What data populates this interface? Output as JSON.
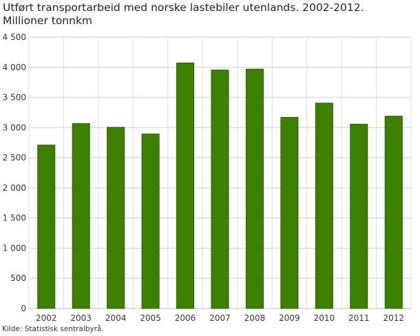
{
  "chart_data": {
    "type": "bar",
    "title": "Utført transportarbeid med norske lastebiler utenlands. 2002-2012.",
    "subtitle": "Millioner tonnkm",
    "source": "Kilde: Statistisk sentralbyrå.",
    "categories": [
      "2002",
      "2003",
      "2004",
      "2005",
      "2006",
      "2007",
      "2008",
      "2009",
      "2010",
      "2011",
      "2012"
    ],
    "values": [
      2710,
      3068,
      3005,
      2894,
      4073,
      3955,
      3970,
      3170,
      3406,
      3057,
      3190
    ],
    "ylim": [
      0,
      4500
    ],
    "yticks": [
      0,
      500,
      1000,
      1500,
      2000,
      2500,
      3000,
      3500,
      4000,
      4500
    ],
    "ytick_labels": [
      "0",
      "500",
      "1 000",
      "1 500",
      "2 000",
      "2 500",
      "3 000",
      "3 500",
      "4 000",
      "4 500"
    ],
    "xlabel": "",
    "ylabel": "",
    "grid": true,
    "bar_color": "#3d8000",
    "bar_edge_color": "#2a5a00"
  }
}
